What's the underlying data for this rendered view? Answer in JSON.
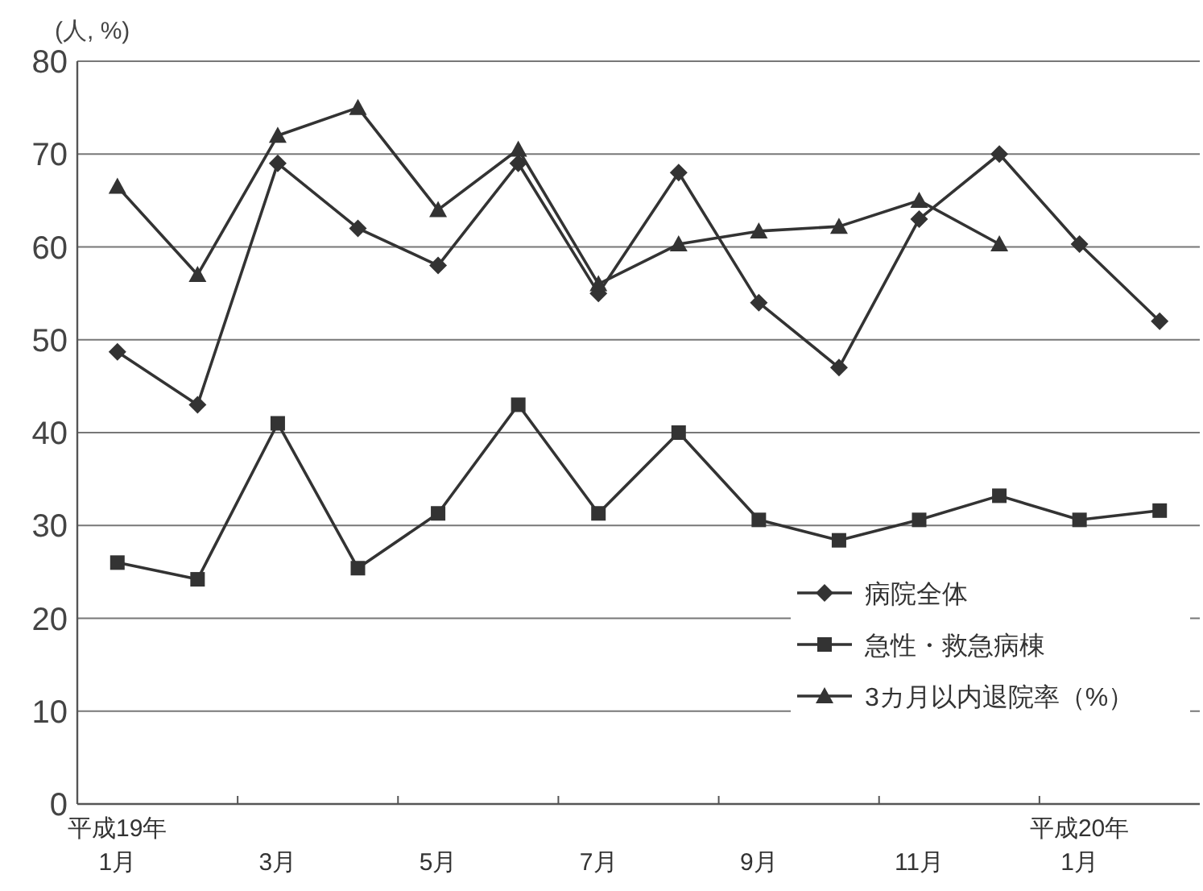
{
  "chart_data": {
    "type": "line",
    "ylabel": "(人, %)",
    "categories": [
      "平成19年\n1月",
      null,
      "3月",
      null,
      "5月",
      null,
      "7月",
      null,
      "9月",
      null,
      "11月",
      null,
      "平成20年\n1月",
      null
    ],
    "series": [
      {
        "name": "病院全体",
        "color": "#333333",
        "marker": "diamond",
        "values": [
          48.7,
          43,
          69,
          62,
          58,
          69,
          55,
          68,
          54,
          47,
          63,
          70,
          60.3,
          52
        ]
      },
      {
        "name": "急性・救急病棟",
        "color": "#333333",
        "marker": "square",
        "values": [
          26,
          24.2,
          41,
          25.4,
          31.3,
          43,
          31.3,
          40,
          30.6,
          28.4,
          30.6,
          33.2,
          30.6,
          31.6
        ]
      },
      {
        "name": "3カ月以内退院率（%）",
        "color": "#333333",
        "marker": "triangle",
        "values": [
          66.5,
          57,
          72,
          75,
          64,
          70.5,
          56,
          60.3,
          61.7,
          62.2,
          65,
          60.3,
          null,
          null
        ]
      }
    ],
    "ylim": [
      0,
      80
    ],
    "yticks": [
      0,
      10,
      20,
      30,
      40,
      50,
      60,
      70,
      80
    ],
    "grid": "y",
    "legend": "bottom right",
    "line_style": "solid"
  }
}
